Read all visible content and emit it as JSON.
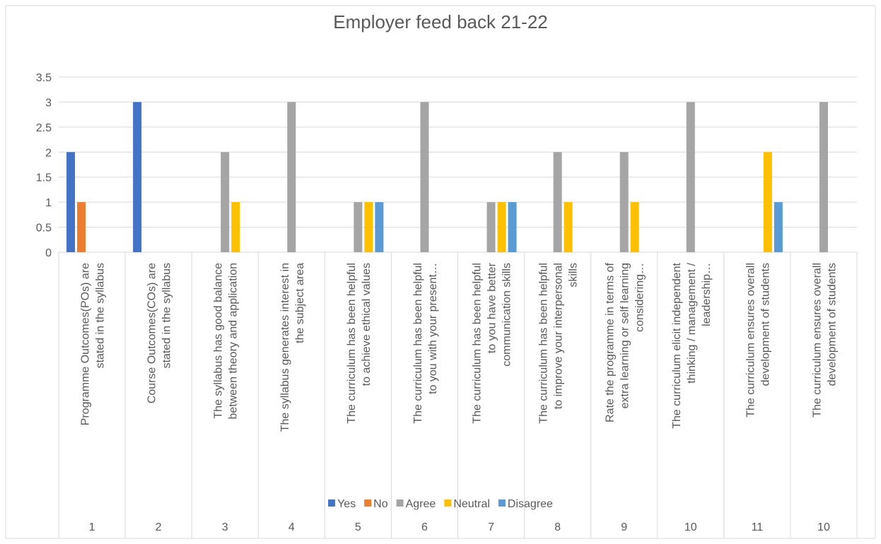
{
  "chart_data": {
    "type": "bar",
    "title": "Employer feed back 21-22",
    "categories": [
      "Programme Outcomes(POs) are stated in the syllabus",
      "Course Outcomes(COs) are stated in the syllabus",
      "The syllabus has good balance between theory and application",
      "The syllabus generates interest in the subject area",
      "The curriculum has been helpful to achieve ethical values",
      "The curriculum has been helpful to you with your present…",
      "The curriculum has been helpful to you have better communication skills",
      "The curriculum has been helpful to improve your interpersonal skills",
      "Rate the programme in terms of extra learning or self learning considering…",
      "The curriculum elicit independent thinking / management / leadership…",
      "The curriculum ensures overall development of students",
      "The curriculum ensures overall development of students"
    ],
    "groups": [
      "1",
      "2",
      "3",
      "4",
      "5",
      "6",
      "7",
      "8",
      "9",
      "10",
      "11",
      "10"
    ],
    "series": [
      {
        "name": "Yes",
        "color": "#4472c4",
        "values": [
          2,
          3,
          null,
          null,
          null,
          null,
          null,
          null,
          null,
          null,
          null,
          null
        ]
      },
      {
        "name": "No",
        "color": "#ed7d31",
        "values": [
          1,
          null,
          null,
          null,
          null,
          null,
          null,
          null,
          null,
          null,
          null,
          null
        ]
      },
      {
        "name": "Agree",
        "color": "#a5a5a5",
        "values": [
          null,
          null,
          2,
          3,
          1,
          3,
          1,
          2,
          2,
          3,
          null,
          3
        ]
      },
      {
        "name": "Neutral",
        "color": "#ffc000",
        "values": [
          null,
          null,
          1,
          null,
          1,
          null,
          1,
          1,
          1,
          null,
          2,
          null
        ]
      },
      {
        "name": "Disagree",
        "color": "#5b9bd5",
        "values": [
          null,
          null,
          null,
          null,
          1,
          null,
          1,
          null,
          null,
          null,
          1,
          null
        ]
      }
    ],
    "ylim": [
      0,
      3.5
    ],
    "yticks": [
      0,
      0.5,
      1,
      1.5,
      2,
      2.5,
      3,
      3.5
    ],
    "grid": true,
    "legend": "bottom"
  }
}
